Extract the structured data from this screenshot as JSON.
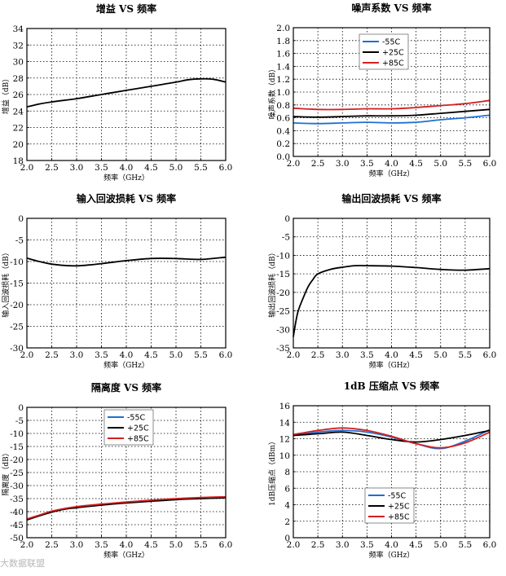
{
  "chart_data": [
    {
      "type": "line",
      "title": "增益 VS 频率",
      "xlabel": "频率（GHz）",
      "ylabel": "增益（dB）",
      "xlim": [
        2.0,
        6.0
      ],
      "ylim": [
        18,
        34
      ],
      "xticks": [
        "2.0",
        "2.5",
        "3.0",
        "3.5",
        "4.0",
        "4.5",
        "5.0",
        "5.5",
        "6.0"
      ],
      "yticks": [
        "18",
        "20",
        "22",
        "24",
        "26",
        "28",
        "30",
        "32",
        "34"
      ],
      "grid": true,
      "legend": null,
      "series": [
        {
          "color": "#000000",
          "x": [
            2.0,
            2.25,
            2.5,
            3.0,
            3.5,
            4.0,
            4.5,
            5.0,
            5.25,
            5.5,
            5.75,
            6.0
          ],
          "y": [
            24.5,
            24.85,
            25.1,
            25.5,
            26.0,
            26.5,
            27.0,
            27.5,
            27.8,
            27.9,
            27.85,
            27.5
          ]
        }
      ]
    },
    {
      "type": "line",
      "title": "噪声系数 VS 频率",
      "xlabel": "频率（GHz）",
      "ylabel": "噪声系数（dB）",
      "xlim": [
        2.0,
        6.0
      ],
      "ylim": [
        0.0,
        2.0
      ],
      "xticks": [
        "2.0",
        "2.5",
        "3.0",
        "3.5",
        "4.0",
        "4.5",
        "5.0",
        "5.5",
        "6.0"
      ],
      "yticks": [
        "0.0",
        "0.2",
        "0.4",
        "0.6",
        "0.8",
        "1.0",
        "1.2",
        "1.4",
        "1.6",
        "1.8",
        "2.0"
      ],
      "grid": true,
      "legend": "top-center",
      "series": [
        {
          "name": "-55C",
          "color": "#1f6fd1",
          "x": [
            2.0,
            2.5,
            3.0,
            3.5,
            4.0,
            4.5,
            5.0,
            5.5,
            6.0
          ],
          "y": [
            0.52,
            0.51,
            0.52,
            0.53,
            0.52,
            0.53,
            0.57,
            0.6,
            0.64
          ]
        },
        {
          "name": "+25C",
          "color": "#000000",
          "x": [
            2.0,
            2.5,
            3.0,
            3.5,
            4.0,
            4.5,
            5.0,
            5.5,
            6.0
          ],
          "y": [
            0.62,
            0.61,
            0.62,
            0.63,
            0.63,
            0.64,
            0.67,
            0.7,
            0.73
          ]
        },
        {
          "name": "+85C",
          "color": "#d42020",
          "x": [
            2.0,
            2.5,
            3.0,
            3.5,
            4.0,
            4.5,
            5.0,
            5.5,
            6.0
          ],
          "y": [
            0.75,
            0.73,
            0.73,
            0.74,
            0.74,
            0.76,
            0.79,
            0.82,
            0.87
          ]
        }
      ]
    },
    {
      "type": "line",
      "title": "输入回波损耗 VS 频率",
      "xlabel": "频率（GHz）",
      "ylabel": "输入回波损耗（dB）",
      "xlim": [
        2.0,
        6.0
      ],
      "ylim": [
        -30,
        0
      ],
      "xticks": [
        "2.0",
        "2.5",
        "3.0",
        "3.5",
        "4.0",
        "4.5",
        "5.0",
        "5.5",
        "6.0"
      ],
      "yticks": [
        "-30",
        "-25",
        "-20",
        "-15",
        "-10",
        "-5",
        "0"
      ],
      "grid": true,
      "legend": null,
      "series": [
        {
          "color": "#000000",
          "x": [
            2.0,
            2.25,
            2.5,
            2.75,
            3.0,
            3.25,
            3.5,
            4.0,
            4.5,
            5.0,
            5.5,
            6.0
          ],
          "y": [
            -9.2,
            -10.0,
            -10.6,
            -10.9,
            -11.0,
            -10.8,
            -10.5,
            -9.8,
            -9.3,
            -9.3,
            -9.5,
            -9.0
          ]
        }
      ]
    },
    {
      "type": "line",
      "title": "输出回波损耗 VS 频率",
      "xlabel": "频率（GHz）",
      "ylabel": "输出回波损耗（dB）",
      "xlim": [
        2.0,
        6.0
      ],
      "ylim": [
        -35,
        0
      ],
      "xticks": [
        "2.0",
        "2.5",
        "3.0",
        "3.5",
        "4.0",
        "4.5",
        "5.0",
        "5.5",
        "6.0"
      ],
      "yticks": [
        "-35",
        "-30",
        "-25",
        "-20",
        "-15",
        "-10",
        "-5",
        "0"
      ],
      "grid": true,
      "legend": null,
      "series": [
        {
          "color": "#000000",
          "x": [
            2.0,
            2.05,
            2.1,
            2.2,
            2.3,
            2.4,
            2.5,
            2.75,
            3.0,
            3.25,
            3.5,
            4.0,
            4.5,
            5.0,
            5.5,
            6.0
          ],
          "y": [
            -32.0,
            -28.0,
            -25.0,
            -21.5,
            -18.5,
            -16.5,
            -15.0,
            -13.8,
            -13.2,
            -12.8,
            -12.8,
            -12.9,
            -13.3,
            -13.8,
            -14.0,
            -13.6
          ]
        }
      ]
    },
    {
      "type": "line",
      "title": "隔离度 VS 频率",
      "xlabel": "频率（GHz）",
      "ylabel": "隔离度（dB）",
      "xlim": [
        2.0,
        6.0
      ],
      "ylim": [
        -50,
        0
      ],
      "xticks": [
        "2.0",
        "2.5",
        "3.0",
        "3.5",
        "4.0",
        "4.5",
        "5.0",
        "5.5",
        "6.0"
      ],
      "yticks": [
        "-50",
        "-45",
        "-40",
        "-35",
        "-30",
        "-25",
        "-20",
        "-15",
        "-10",
        "-5",
        "0"
      ],
      "grid": true,
      "legend": "top-center",
      "series": [
        {
          "name": "-55C",
          "color": "#1f6fd1",
          "x": [
            2.0,
            2.25,
            2.5,
            2.75,
            3.0,
            3.5,
            4.0,
            4.5,
            5.0,
            5.5,
            6.0
          ],
          "y": [
            -43.0,
            -41.5,
            -40.0,
            -39.0,
            -38.3,
            -37.3,
            -36.5,
            -35.8,
            -35.2,
            -34.8,
            -34.5
          ]
        },
        {
          "name": "+25C",
          "color": "#000000",
          "x": [
            2.0,
            2.25,
            2.5,
            2.75,
            3.0,
            3.5,
            4.0,
            4.5,
            5.0,
            5.5,
            6.0
          ],
          "y": [
            -43.2,
            -41.6,
            -40.2,
            -39.1,
            -38.5,
            -37.5,
            -36.7,
            -36.0,
            -35.4,
            -35.0,
            -34.7
          ]
        },
        {
          "name": "+85C",
          "color": "#d42020",
          "x": [
            2.0,
            2.25,
            2.5,
            2.75,
            3.0,
            3.5,
            4.0,
            4.5,
            5.0,
            5.5,
            6.0
          ],
          "y": [
            -42.8,
            -41.3,
            -39.8,
            -38.8,
            -38.1,
            -37.1,
            -36.3,
            -35.6,
            -35.0,
            -34.6,
            -34.3
          ]
        }
      ]
    },
    {
      "type": "line",
      "title": "1dB 压缩点 VS 频率",
      "xlabel": "频率（GHz）",
      "ylabel": "1dB压缩点（dBm）",
      "xlim": [
        2.0,
        6.0
      ],
      "ylim": [
        0,
        16
      ],
      "xticks": [
        "2.0",
        "2.5",
        "3.0",
        "3.5",
        "4.0",
        "4.5",
        "5.0",
        "5.5",
        "6.0"
      ],
      "yticks": [
        "0",
        "2",
        "4",
        "6",
        "8",
        "10",
        "12",
        "14",
        "16"
      ],
      "grid": true,
      "legend": "bottom-left",
      "series": [
        {
          "name": "-55C",
          "color": "#1f6fd1",
          "x": [
            2.0,
            2.5,
            3.0,
            3.5,
            4.0,
            4.5,
            5.0,
            5.5,
            6.0
          ],
          "y": [
            12.4,
            12.8,
            13.0,
            12.8,
            12.2,
            11.4,
            10.8,
            11.7,
            13.1
          ]
        },
        {
          "name": "+25C",
          "color": "#000000",
          "x": [
            2.0,
            2.5,
            3.0,
            3.5,
            4.0,
            4.5,
            5.0,
            5.5,
            6.0
          ],
          "y": [
            12.4,
            12.6,
            12.8,
            12.4,
            11.9,
            11.6,
            11.9,
            12.4,
            13.0
          ]
        },
        {
          "name": "+85C",
          "color": "#d42020",
          "x": [
            2.0,
            2.5,
            3.0,
            3.5,
            4.0,
            4.5,
            5.0,
            5.5,
            6.0
          ],
          "y": [
            12.5,
            13.0,
            13.3,
            13.0,
            12.3,
            11.4,
            10.9,
            11.5,
            12.8
          ]
        }
      ]
    }
  ],
  "watermark": "大数据联盟"
}
